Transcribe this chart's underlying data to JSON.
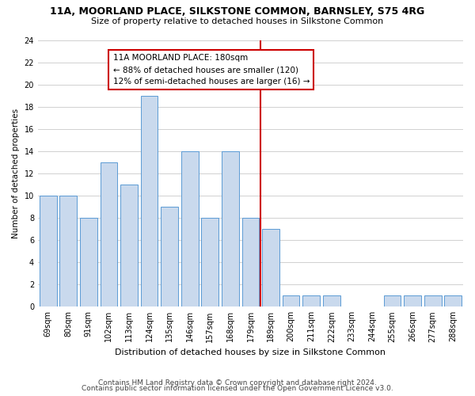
{
  "title": "11A, MOORLAND PLACE, SILKSTONE COMMON, BARNSLEY, S75 4RG",
  "subtitle": "Size of property relative to detached houses in Silkstone Common",
  "xlabel": "Distribution of detached houses by size in Silkstone Common",
  "ylabel": "Number of detached properties",
  "footer1": "Contains HM Land Registry data © Crown copyright and database right 2024.",
  "footer2": "Contains public sector information licensed under the Open Government Licence v3.0.",
  "categories": [
    "69sqm",
    "80sqm",
    "91sqm",
    "102sqm",
    "113sqm",
    "124sqm",
    "135sqm",
    "146sqm",
    "157sqm",
    "168sqm",
    "179sqm",
    "189sqm",
    "200sqm",
    "211sqm",
    "222sqm",
    "233sqm",
    "244sqm",
    "255sqm",
    "266sqm",
    "277sqm",
    "288sqm"
  ],
  "values": [
    10,
    10,
    8,
    13,
    11,
    19,
    9,
    14,
    8,
    14,
    8,
    7,
    1,
    1,
    1,
    0,
    0,
    1,
    1,
    1,
    1
  ],
  "bar_color": "#c9d9ed",
  "bar_edge_color": "#5b9bd5",
  "grid_color": "#d0d0d0",
  "vline_index": 10,
  "vline_color": "#cc0000",
  "annotation_text": "11A MOORLAND PLACE: 180sqm\n← 88% of detached houses are smaller (120)\n12% of semi-detached houses are larger (16) →",
  "annotation_box_color": "#ffffff",
  "annotation_box_edge": "#cc0000",
  "ylim": [
    0,
    24
  ],
  "yticks": [
    0,
    2,
    4,
    6,
    8,
    10,
    12,
    14,
    16,
    18,
    20,
    22,
    24
  ],
  "title_fontsize": 9,
  "subtitle_fontsize": 8,
  "ylabel_fontsize": 7.5,
  "xlabel_fontsize": 8,
  "tick_fontsize": 7,
  "annot_fontsize": 7.5,
  "bar_width": 0.85
}
